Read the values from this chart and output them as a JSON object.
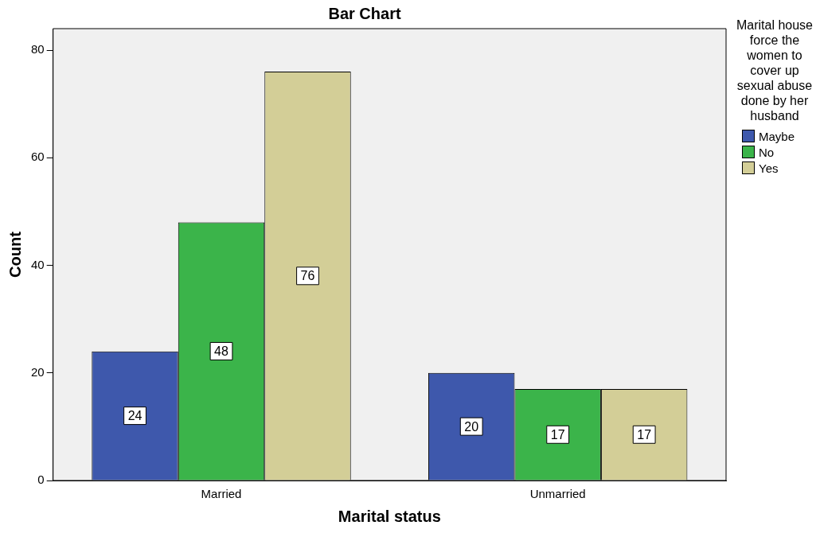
{
  "chart_data": {
    "type": "bar",
    "title": "Bar Chart",
    "xlabel": "Marital status",
    "ylabel": "Count",
    "legend_title": "Marital house force the women to cover up sexual abuse done by her husband",
    "categories": [
      "Married",
      "Unmarried"
    ],
    "series": [
      {
        "name": "Maybe",
        "color": "#3e58ac",
        "values": [
          24,
          20
        ]
      },
      {
        "name": "No",
        "color": "#3bb44a",
        "values": [
          48,
          17
        ]
      },
      {
        "name": "Yes",
        "color": "#d3ce97",
        "values": [
          76,
          17
        ]
      }
    ],
    "ylim": [
      0,
      84
    ],
    "yticks": [
      0,
      20,
      40,
      60,
      80
    ],
    "grid": false,
    "legend": "right",
    "data_labels": true
  }
}
